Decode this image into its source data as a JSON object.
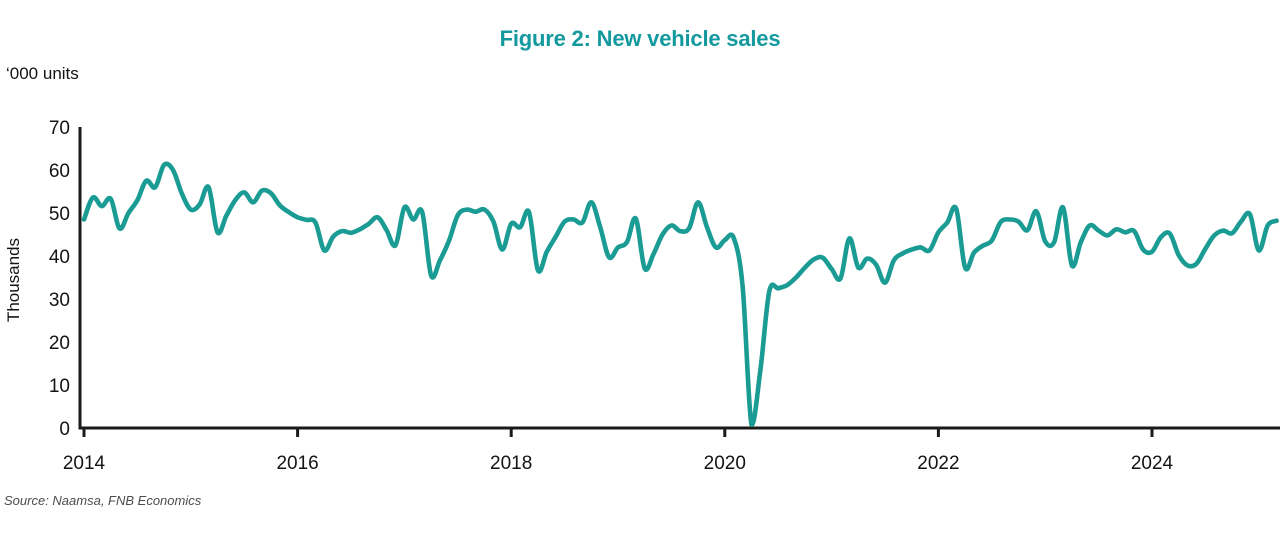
{
  "title": "Figure 2: New vehicle sales",
  "units_label": "‘000 units",
  "y_axis_label": "Thousands",
  "source": "Source: Naamsa, FNB Economics",
  "colors": {
    "title": "#14999F",
    "line": "#1A9B94",
    "axis": "#1a1a1a",
    "tick_text": "#141414",
    "source_text": "#4d4d4d"
  },
  "chart_data": {
    "type": "line",
    "title": "Figure 2: New vehicle sales",
    "xlabel": "",
    "ylabel": "Thousands",
    "units": "'000 units",
    "frequency": "monthly",
    "x_start": "2014-01",
    "x_end": "2025-03",
    "ylim": [
      0,
      70
    ],
    "y_ticks": [
      0,
      10,
      20,
      30,
      40,
      50,
      60,
      70
    ],
    "x_tick_labels": [
      "2014",
      "2016",
      "2018",
      "2020",
      "2022",
      "2024"
    ],
    "grid": false,
    "legend": false,
    "series": [
      {
        "name": "New vehicle sales ('000 units)",
        "values": [
          48.5,
          53.6,
          51.6,
          53.3,
          46.4,
          50.0,
          53.0,
          57.5,
          56.0,
          61.2,
          60.0,
          54.5,
          50.8,
          52.0,
          56.0,
          45.5,
          49.4,
          53.0,
          54.8,
          52.5,
          55.2,
          54.6,
          51.8,
          50.2,
          49.0,
          48.4,
          47.8,
          41.3,
          44.5,
          45.8,
          45.4,
          46.2,
          47.5,
          49.0,
          46.0,
          42.5,
          51.3,
          48.5,
          50.2,
          35.5,
          39.0,
          43.5,
          49.5,
          50.8,
          50.3,
          50.8,
          48.0,
          41.5,
          47.5,
          46.7,
          50.2,
          36.7,
          41.0,
          44.5,
          48.0,
          48.5,
          47.8,
          52.5,
          46.7,
          39.7,
          42.0,
          43.2,
          48.7,
          37.1,
          40.5,
          45.0,
          47.1,
          45.8,
          46.5,
          52.5,
          46.7,
          42.0,
          43.7,
          44.2,
          33.0,
          0.8,
          13.5,
          31.8,
          32.5,
          33.2,
          35.0,
          37.3,
          39.2,
          39.6,
          37.0,
          34.8,
          44.1,
          37.3,
          39.4,
          38.0,
          33.8,
          39.0,
          40.6,
          41.5,
          42.0,
          41.3,
          45.5,
          47.8,
          51.0,
          37.3,
          40.8,
          42.4,
          43.6,
          47.9,
          48.5,
          48.0,
          46.0,
          50.4,
          43.4,
          43.2,
          51.3,
          37.8,
          43.2,
          47.1,
          45.9,
          44.8,
          46.2,
          45.5,
          45.8,
          41.5,
          41.0,
          44.4,
          45.2,
          40.2,
          37.8,
          38.2,
          41.7,
          44.8,
          45.9,
          45.3,
          48.0,
          49.7,
          41.3,
          47.1,
          48.2
        ]
      }
    ]
  }
}
